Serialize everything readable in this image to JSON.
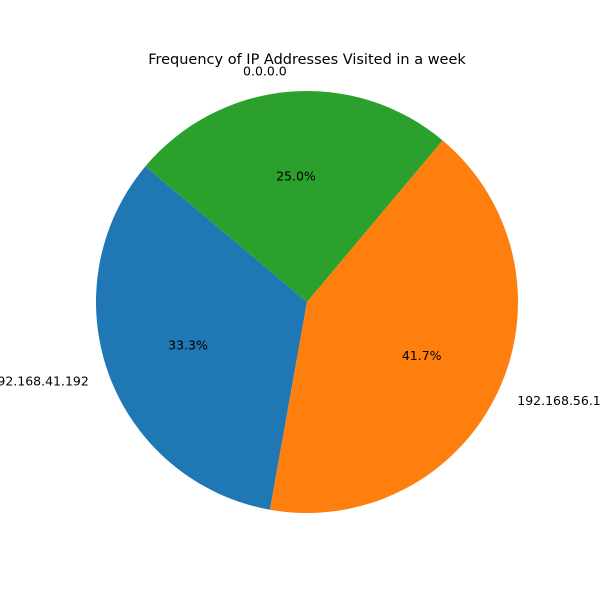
{
  "chart_data": {
    "type": "pie",
    "title": "Frequency of IP Addresses Visited in a week",
    "start_angle_deg": 140,
    "direction": "counterclockwise",
    "slices": [
      {
        "label": "192.168.41.192",
        "value": 33.3,
        "pct_label": "33.3%",
        "color": "#1f77b4"
      },
      {
        "label": "192.168.56.1",
        "value": 41.7,
        "pct_label": "41.7%",
        "color": "#ff7f0e"
      },
      {
        "label": "0.0.0.0",
        "value": 25.0,
        "pct_label": "25.0%",
        "color": "#2ca02c"
      }
    ]
  }
}
